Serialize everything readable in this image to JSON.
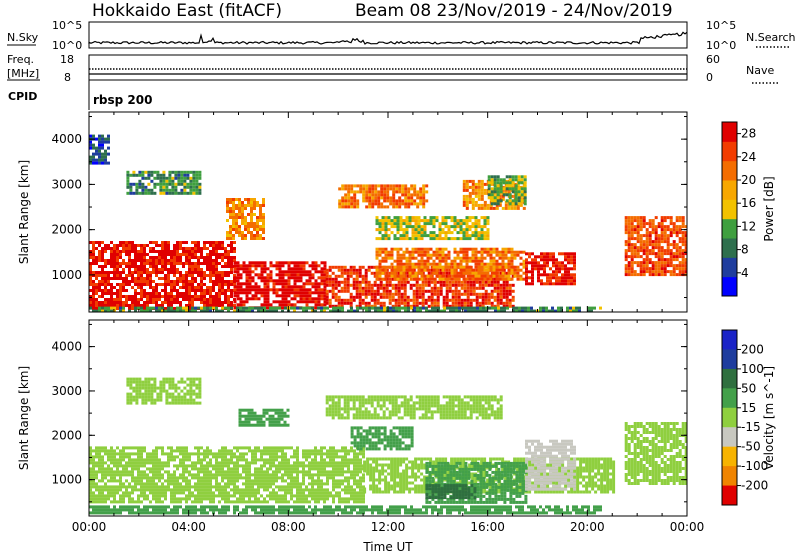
{
  "header": {
    "title": "Hokkaido East (fitACF)",
    "beam_date": "Beam 08  23/Nov/2019 - 24/Nov/2019"
  },
  "top_panels": {
    "nsky_label": "N.Sky",
    "nsky_ticks": [
      "10^5",
      "10^0"
    ],
    "nsearch_label": "N.Search",
    "nsearch_ticks": [
      "10^5",
      "10^0"
    ],
    "freq_label": "Freq.",
    "freq_unit": "[MHz]",
    "freq_ticks": [
      "18",
      "8"
    ],
    "nave_label": "Nave",
    "nave_ticks": [
      "60",
      "0"
    ],
    "cpid_label": "CPID",
    "cpid_value": "rbsp 200"
  },
  "colors": {
    "power_scale": [
      "#0000ff",
      "#1f3d9e",
      "#2e6f4d",
      "#3f9f3f",
      "#f2c200",
      "#f7a700",
      "#f46d00",
      "#f23c00",
      "#e00000"
    ],
    "velocity_scale": [
      "#1a23c7",
      "#1f3d9e",
      "#2f6f3f",
      "#43a04a",
      "#8fcf3f",
      "#c8c8c0",
      "#f7b300",
      "#f08400",
      "#ef4a00",
      "#e00000"
    ]
  },
  "chart_data": [
    {
      "type": "heatmap",
      "panel": "power",
      "x_axis": {
        "ticks": [
          "00:00",
          "04:00",
          "08:00",
          "12:00",
          "16:00",
          "20:00",
          "00:00"
        ],
        "range_hours": [
          0,
          24
        ]
      },
      "ylabel": "Slant Range [km]",
      "y_ticks": [
        "1000",
        "2000",
        "3000",
        "4000"
      ],
      "ylim_km": [
        180,
        4600
      ],
      "colorbar": {
        "label": "Power [dB]",
        "ticks": [
          "4",
          "8",
          "12",
          "16",
          "20",
          "24",
          "28"
        ],
        "range": [
          0,
          30
        ]
      },
      "regions": [
        {
          "t0": 0.0,
          "t1": 5.8,
          "r0": 250,
          "r1": 1750,
          "v": 28
        },
        {
          "t0": 5.8,
          "t1": 9.5,
          "r0": 250,
          "r1": 1300,
          "v": 29
        },
        {
          "t0": 9.5,
          "t1": 17.0,
          "r0": 300,
          "r1": 1200,
          "v": 26
        },
        {
          "t0": 11.5,
          "t1": 17.5,
          "r0": 900,
          "r1": 1600,
          "v": 22
        },
        {
          "t0": 17.5,
          "t1": 19.5,
          "r0": 800,
          "r1": 1500,
          "v": 28
        },
        {
          "t0": 0.0,
          "t1": 20.5,
          "r0": 200,
          "r1": 300,
          "v": 10
        },
        {
          "t0": 21.5,
          "t1": 24.0,
          "r0": 1000,
          "r1": 2300,
          "v": 24
        },
        {
          "t0": 5.5,
          "t1": 7.0,
          "r0": 1800,
          "r1": 2700,
          "v": 20
        },
        {
          "t0": 10.0,
          "t1": 13.5,
          "r0": 2500,
          "r1": 3000,
          "v": 22
        },
        {
          "t0": 15.0,
          "t1": 17.5,
          "r0": 2500,
          "r1": 3100,
          "v": 20
        },
        {
          "t0": 11.5,
          "t1": 16.0,
          "r0": 1800,
          "r1": 2300,
          "v": 14
        },
        {
          "t0": 16.0,
          "t1": 17.5,
          "r0": 2600,
          "r1": 3200,
          "v": 12
        },
        {
          "t0": 1.5,
          "t1": 4.5,
          "r0": 2800,
          "r1": 3300,
          "v": 10
        },
        {
          "t0": 0.0,
          "t1": 0.8,
          "r0": 3500,
          "r1": 4100,
          "v": 6
        }
      ]
    },
    {
      "type": "heatmap",
      "panel": "velocity",
      "x_axis": {
        "ticks": [
          "00:00",
          "04:00",
          "08:00",
          "12:00",
          "16:00",
          "20:00",
          "00:00"
        ],
        "range_hours": [
          0,
          24
        ]
      },
      "xlabel": "Time UT",
      "ylabel": "Slant Range [km]",
      "y_ticks": [
        "1000",
        "2000",
        "3000",
        "4000"
      ],
      "ylim_km": [
        180,
        4600
      ],
      "colorbar": {
        "label": "Velocity [m s^-1]",
        "ticks": [
          "200",
          "100",
          "50",
          "15",
          "-15",
          "-50",
          "-100",
          "-200"
        ],
        "range": [
          -250,
          250
        ]
      },
      "regions": [
        {
          "t0": 0.0,
          "t1": 11.0,
          "r0": 500,
          "r1": 1750,
          "v": 0
        },
        {
          "t0": 11.0,
          "t1": 21.0,
          "r0": 700,
          "r1": 1500,
          "v": 0
        },
        {
          "t0": 21.5,
          "t1": 24.0,
          "r0": 900,
          "r1": 2300,
          "v": 0
        },
        {
          "t0": 13.5,
          "t1": 17.5,
          "r0": 500,
          "r1": 1400,
          "v": 40
        },
        {
          "t0": 17.5,
          "t1": 19.5,
          "r0": 800,
          "r1": 1900,
          "v": -40
        },
        {
          "t0": 0.0,
          "t1": 20.5,
          "r0": 220,
          "r1": 420,
          "v": 25
        },
        {
          "t0": 9.5,
          "t1": 16.5,
          "r0": 2400,
          "r1": 2900,
          "v": 0
        },
        {
          "t0": 10.5,
          "t1": 13.0,
          "r0": 1700,
          "r1": 2200,
          "v": 35
        },
        {
          "t0": 6.0,
          "t1": 8.0,
          "r0": 2200,
          "r1": 2600,
          "v": 25
        },
        {
          "t0": 1.5,
          "t1": 4.5,
          "r0": 2700,
          "r1": 3300,
          "v": 0
        },
        {
          "t0": 13.5,
          "t1": 15.5,
          "r0": 600,
          "r1": 900,
          "v": 60
        }
      ]
    }
  ]
}
